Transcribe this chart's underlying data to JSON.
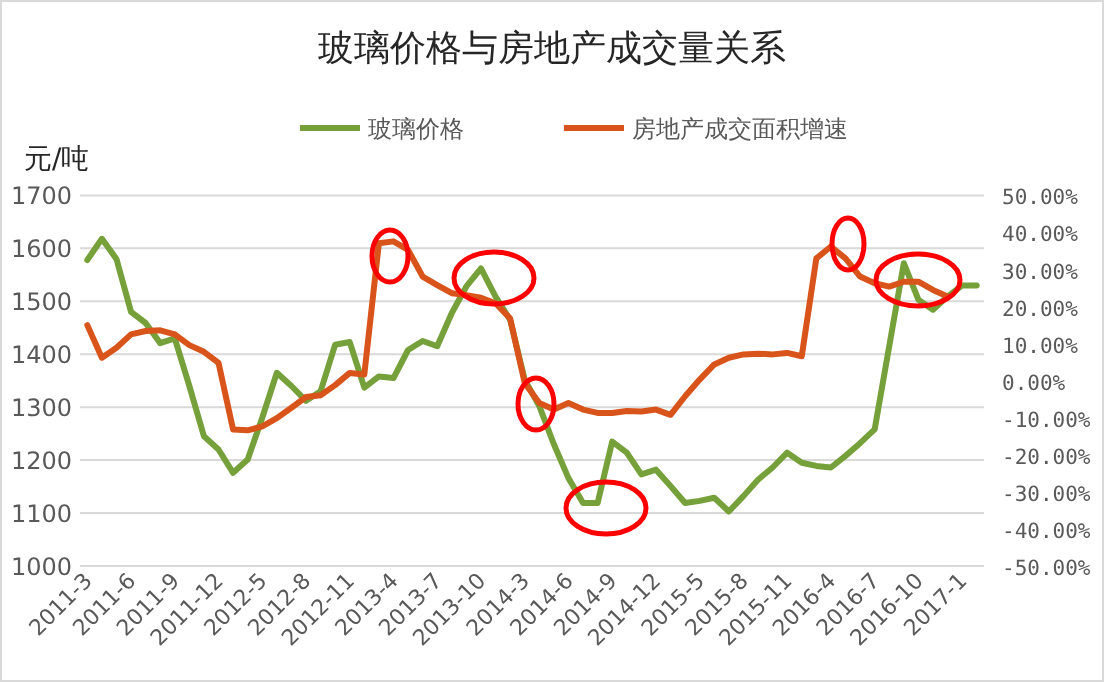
{
  "chart_data": {
    "type": "line",
    "title": "玻璃价格与房地产成交量关系",
    "ylabel": "元/吨",
    "categories": [
      "2011-3",
      null,
      null,
      "2011-6",
      null,
      null,
      "2011-9",
      null,
      null,
      "2011-12",
      null,
      null,
      "2012-5",
      null,
      null,
      "2012-8",
      null,
      null,
      "2012-11",
      null,
      null,
      "2013-4",
      null,
      null,
      "2013-7",
      null,
      null,
      "2013-10",
      null,
      null,
      "2014-3",
      null,
      null,
      "2014-6",
      null,
      null,
      "2014-9",
      null,
      null,
      "2014-12",
      null,
      null,
      "2015-5",
      null,
      null,
      "2015-8",
      null,
      null,
      "2015-11",
      null,
      null,
      "2016-4",
      null,
      null,
      "2016-7",
      null,
      null,
      "2016-10",
      null,
      null,
      "2017-1",
      null
    ],
    "series": [
      {
        "name": "玻璃价格",
        "color": "#76a03a",
        "values": [
          1578,
          1618,
          1580,
          1480,
          1459,
          1421,
          1430,
          1340,
          1245,
          1220,
          1176,
          1201,
          1280,
          1365,
          1340,
          1312,
          1330,
          1418,
          1423,
          1337,
          1358,
          1355,
          1408,
          1425,
          1415,
          1478,
          1528,
          1562,
          1509,
          1465,
          1352,
          1302,
          1230,
          1166,
          1119,
          1119,
          1235,
          1214,
          1173,
          1182,
          1151,
          1119,
          1123,
          1129,
          1103,
          1132,
          1163,
          1186,
          1214,
          1195,
          1189,
          1186,
          1208,
          1232,
          1258,
          1415,
          1572,
          1503,
          1484,
          1509,
          1530,
          1530
        ]
      },
      {
        "name": "房地产成交面积增速",
        "color": "#d9541a",
        "axis": "y2",
        "values": [
          15.0,
          6.2,
          8.9,
          12.5,
          13.4,
          13.6,
          12.5,
          9.6,
          7.8,
          4.8,
          -13.2,
          -13.4,
          -12.3,
          -10.1,
          -7.3,
          -4.4,
          -3.9,
          -1.2,
          2.1,
          1.7,
          37.1,
          37.6,
          35.3,
          28.1,
          25.8,
          23.6,
          23.1,
          22.4,
          20.9,
          16.8,
          -0.6,
          -6.0,
          -7.8,
          -6.0,
          -7.8,
          -8.7,
          -8.7,
          -8.2,
          -8.3,
          -7.8,
          -9.2,
          -4.2,
          0.3,
          4.4,
          6.2,
          7.1,
          7.3,
          7.1,
          7.5,
          6.6,
          33.0,
          36.2,
          33.0,
          28.1,
          26.3,
          25.4,
          26.7,
          26.7,
          24.5,
          22.7,
          null,
          null
        ]
      }
    ],
    "ylim": [
      1000,
      1700
    ],
    "yticks": [
      1000,
      1100,
      1200,
      1300,
      1400,
      1500,
      1600,
      1700
    ],
    "y2lim": [
      -50,
      50
    ],
    "y2ticks": [
      {
        "value": -50,
        "label": "-50.00%"
      },
      {
        "value": -40,
        "label": "-40.00%"
      },
      {
        "value": -30,
        "label": "-30.00%"
      },
      {
        "value": -20,
        "label": "-20.00%"
      },
      {
        "value": -10,
        "label": "-10.00%"
      },
      {
        "value": 0,
        "label": "0.00%"
      },
      {
        "value": 10,
        "label": "10.00%"
      },
      {
        "value": 20,
        "label": "20.00%"
      },
      {
        "value": 30,
        "label": "30.00%"
      },
      {
        "value": 40,
        "label": "40.00%"
      },
      {
        "value": 50,
        "label": "50.00%"
      }
    ],
    "grid": "y",
    "legend": "top"
  }
}
